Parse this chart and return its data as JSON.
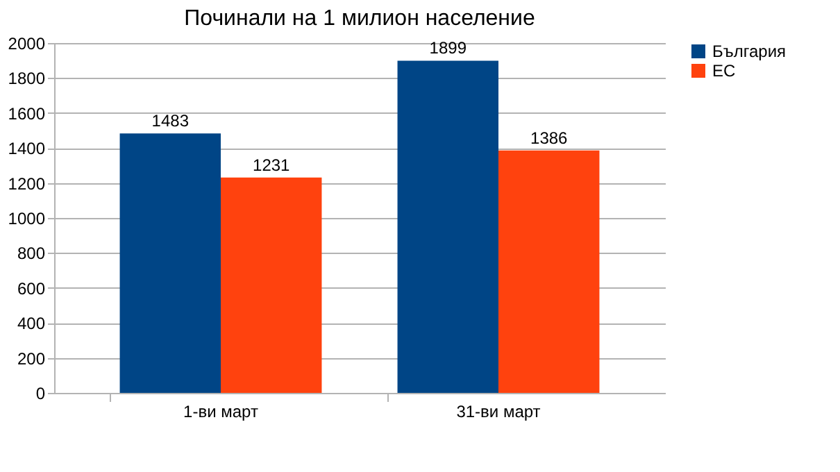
{
  "chart_data": {
    "type": "bar",
    "title": "Починали на 1 милион население",
    "categories": [
      "1-ви март",
      "31-ви март"
    ],
    "series": [
      {
        "name": "България",
        "color": "#004586",
        "values": [
          1483,
          1899
        ]
      },
      {
        "name": "ЕС",
        "color": "#ff420e",
        "values": [
          1231,
          1386
        ]
      }
    ],
    "ylim": [
      0,
      2000
    ],
    "yticks": [
      0,
      200,
      400,
      600,
      800,
      1000,
      1200,
      1400,
      1600,
      1800,
      2000
    ],
    "grid": "y",
    "legend": "right",
    "data_labels": true
  }
}
